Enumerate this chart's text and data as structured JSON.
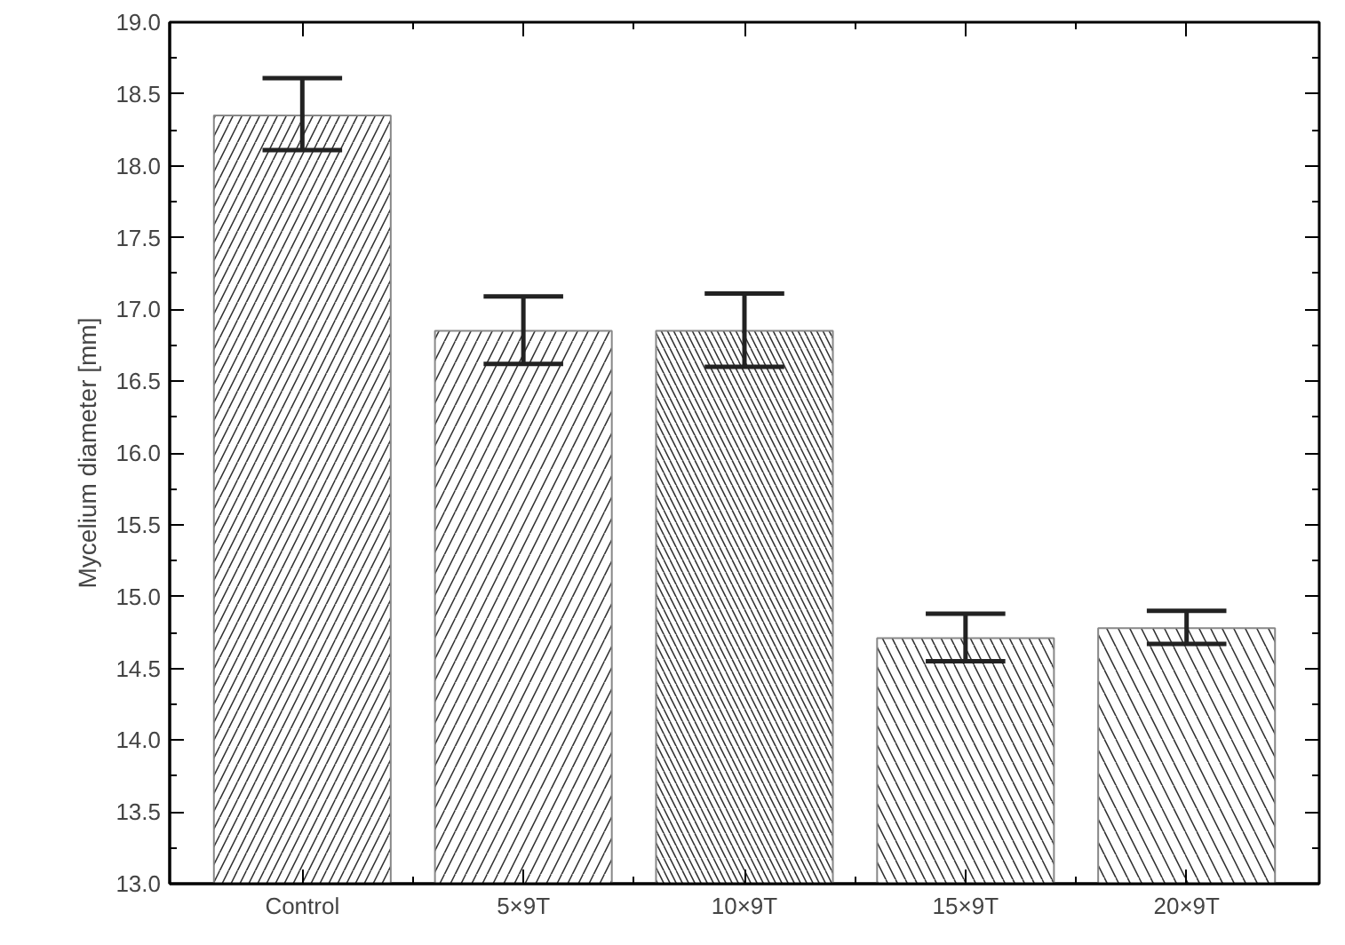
{
  "chart_data": {
    "type": "bar",
    "ylabel": "Mycelium diameter [mm]",
    "categories": [
      "Control",
      "5×9T",
      "10×9T",
      "15×9T",
      "20×9T"
    ],
    "values": [
      18.35,
      16.85,
      16.85,
      14.71,
      14.78
    ],
    "errors": [
      [
        18.11,
        18.61
      ],
      [
        16.62,
        17.09
      ],
      [
        16.6,
        17.11
      ],
      [
        14.55,
        14.88
      ],
      [
        14.67,
        14.9
      ]
    ],
    "color": "#ffffff",
    "ylim": [
      13.0,
      19.0
    ],
    "yticks": [
      {
        "value": 13.0,
        "label": "13.0"
      },
      {
        "value": 13.5,
        "label": "13.5"
      },
      {
        "value": 14.0,
        "label": "14.0"
      },
      {
        "value": 14.5,
        "label": "14.5"
      },
      {
        "value": 15.0,
        "label": "15.0"
      },
      {
        "value": 15.5,
        "label": "15.5"
      },
      {
        "value": 16.0,
        "label": "16.0"
      },
      {
        "value": 16.5,
        "label": "16.5"
      },
      {
        "value": 17.0,
        "label": "17.0"
      },
      {
        "value": 17.5,
        "label": "17.5"
      },
      {
        "value": 18.0,
        "label": "18.0"
      },
      {
        "value": 18.5,
        "label": "18.5"
      },
      {
        "value": 19.0,
        "label": "19.0"
      }
    ],
    "grid": false
  }
}
